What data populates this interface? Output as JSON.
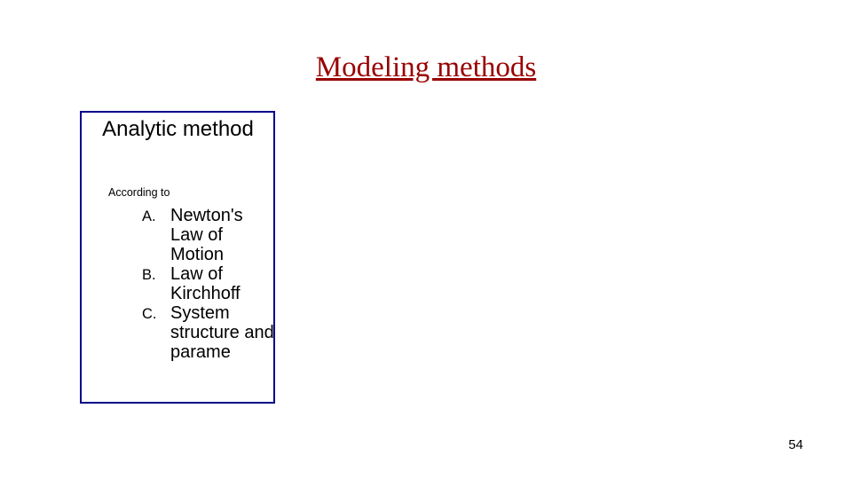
{
  "title": "Modeling methods",
  "title_color": "#990000",
  "box_border_color": "#000088",
  "box_title": "Analytic method",
  "according_to": "According to",
  "items": [
    {
      "letter": "A.",
      "text": "Newton's Law of Motion"
    },
    {
      "letter": "B.",
      "text": "Law of Kirchhoff"
    },
    {
      "letter": "C.",
      "text": "System structure and parame"
    }
  ],
  "page_number": "54"
}
